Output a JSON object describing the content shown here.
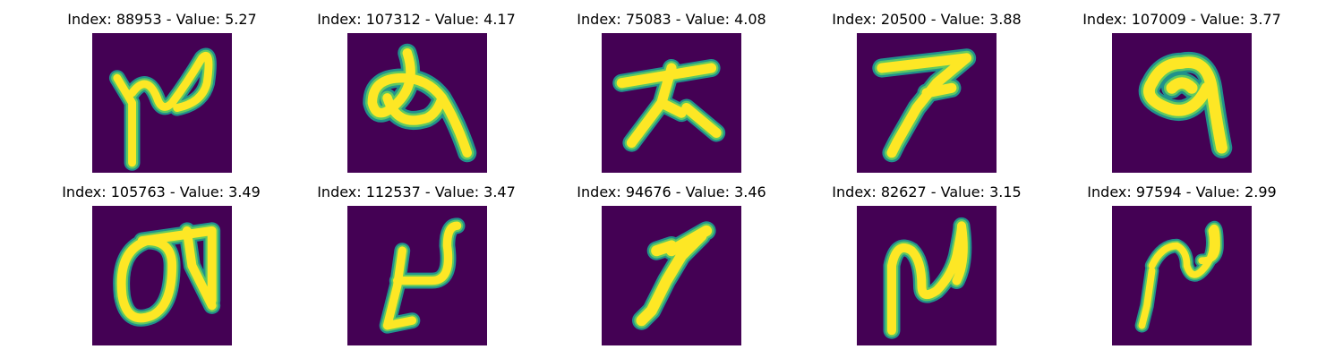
{
  "colors": {
    "background": "#440154",
    "stroke_outer": "#21918c",
    "stroke_mid": "#5ec962",
    "stroke_inner": "#fde725"
  },
  "panels": [
    {
      "index": "88953",
      "value": "5.27",
      "title": "Index: 88953 - Value: 5.27",
      "glyph": "n-loop"
    },
    {
      "index": "107312",
      "value": "4.17",
      "title": "Index: 107312 - Value: 4.17",
      "glyph": "me-loop"
    },
    {
      "index": "75083",
      "value": "4.08",
      "title": "Index: 75083 - Value: 4.08",
      "glyph": "dai"
    },
    {
      "index": "20500",
      "value": "3.88",
      "title": "Index: 20500 - Value: 3.88",
      "glyph": "seven"
    },
    {
      "index": "107009",
      "value": "3.77",
      "title": "Index: 107009 - Value: 3.77",
      "glyph": "nine-loop"
    },
    {
      "index": "105763",
      "value": "3.49",
      "title": "Index: 105763 - Value: 3.49",
      "glyph": "oval-ta"
    },
    {
      "index": "112537",
      "value": "3.47",
      "title": "Index: 112537 - Value: 3.47",
      "glyph": "hook-up"
    },
    {
      "index": "94676",
      "value": "3.46",
      "title": "Index: 94676 - Value: 3.46",
      "glyph": "slash"
    },
    {
      "index": "82627",
      "value": "3.15",
      "title": "Index: 82627 - Value: 3.15",
      "glyph": "n-tall"
    },
    {
      "index": "97594",
      "value": "2.99",
      "title": "Index: 97594 - Value: 2.99",
      "glyph": "n-small"
    }
  ]
}
